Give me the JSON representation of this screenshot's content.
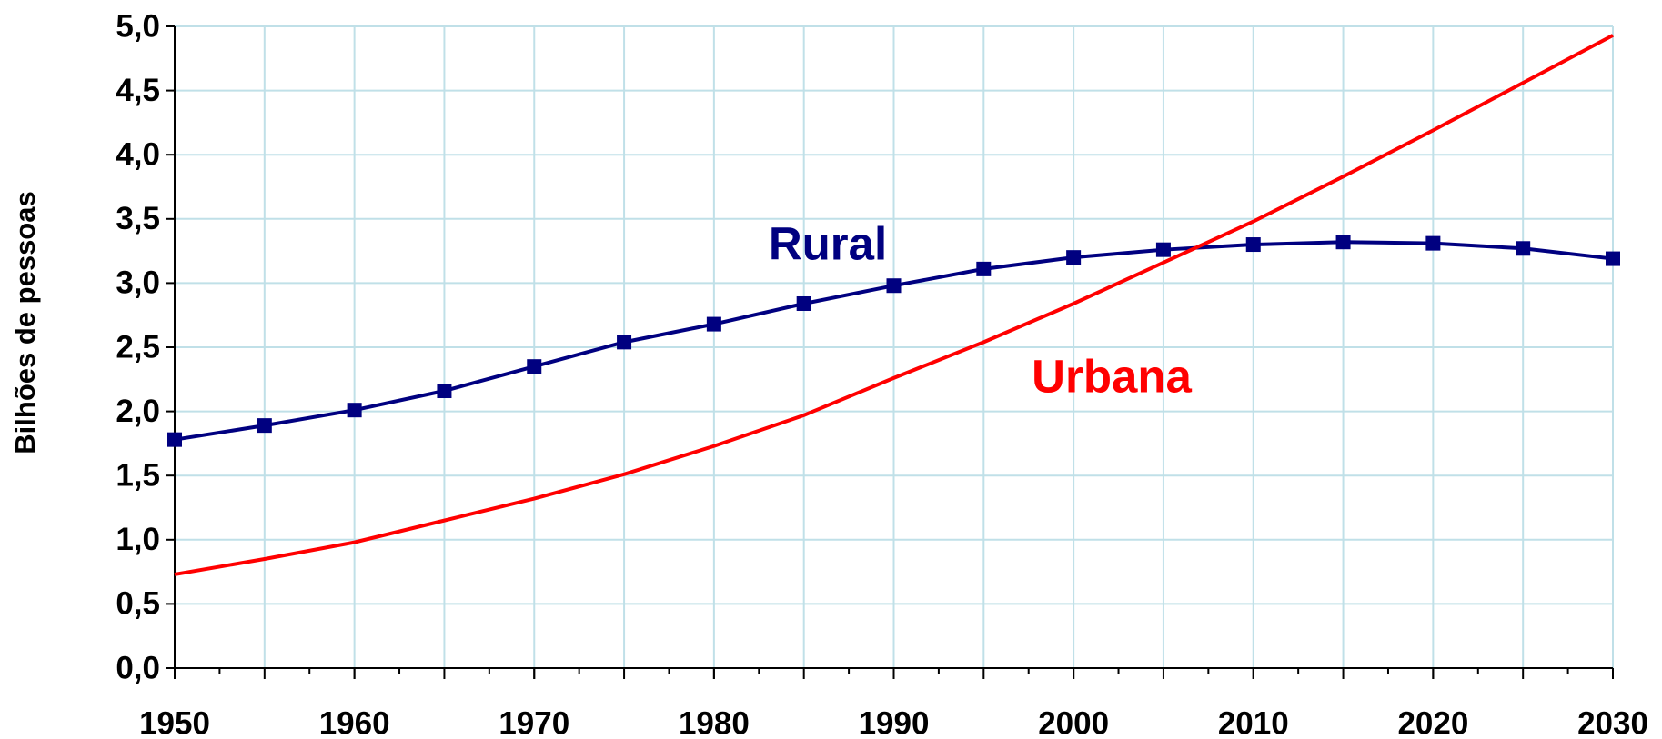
{
  "chart_data": {
    "type": "line",
    "y_label": "Bilhões de pessoas",
    "x": [
      1950,
      1955,
      1960,
      1965,
      1970,
      1975,
      1980,
      1985,
      1990,
      1995,
      2000,
      2005,
      2010,
      2015,
      2020,
      2025,
      2030
    ],
    "series": [
      {
        "name": "Rural",
        "color": "#000080",
        "marker": "square",
        "values": [
          1.78,
          1.89,
          2.01,
          2.16,
          2.35,
          2.54,
          2.68,
          2.84,
          2.98,
          3.11,
          3.2,
          3.26,
          3.3,
          3.32,
          3.31,
          3.27,
          3.19
        ]
      },
      {
        "name": "Urbana",
        "color": "#ff0000",
        "marker": "none",
        "values": [
          0.73,
          0.85,
          0.98,
          1.15,
          1.32,
          1.51,
          1.73,
          1.97,
          2.26,
          2.54,
          2.84,
          3.16,
          3.48,
          3.83,
          4.19,
          4.56,
          4.93
        ]
      }
    ],
    "xlim": [
      1950,
      2030
    ],
    "xticks": [
      1950,
      1960,
      1970,
      1980,
      1990,
      2000,
      2010,
      2020,
      2030
    ],
    "ylim": [
      0,
      5
    ],
    "yticks": [
      {
        "value": 0,
        "label": "0,0"
      },
      {
        "value": 0.5,
        "label": "0,5"
      },
      {
        "value": 1,
        "label": "1,0"
      },
      {
        "value": 1.5,
        "label": "1,5"
      },
      {
        "value": 2,
        "label": "2,0"
      },
      {
        "value": 2.5,
        "label": "2,5"
      },
      {
        "value": 3,
        "label": "3,0"
      },
      {
        "value": 3.5,
        "label": "3,5"
      },
      {
        "value": 4,
        "label": "4,0"
      },
      {
        "value": 4.5,
        "label": "4,5"
      },
      {
        "value": 5,
        "label": "5,0"
      }
    ],
    "grid": true,
    "grid_color": "#c0e0e8"
  }
}
